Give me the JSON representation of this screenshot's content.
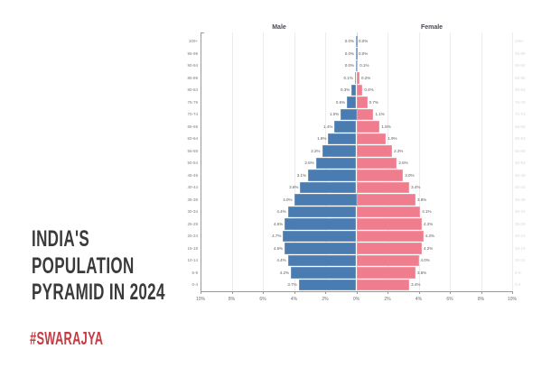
{
  "branding": {
    "title_lines": [
      "INDIA'S",
      "POPULATION",
      "PYRAMID IN 2024"
    ],
    "title_color": "#3a3a3a",
    "hashtag": "#SWARAJYA",
    "hashtag_color": "#c43b44"
  },
  "chart_data": {
    "type": "bar",
    "subtype": "population-pyramid",
    "title": "India's population pyramid in 2024",
    "male_label": "Male",
    "female_label": "Female",
    "age_groups": [
      "100+",
      "95-99",
      "90-94",
      "85-89",
      "80-84",
      "75-79",
      "70-74",
      "65-69",
      "60-64",
      "55-59",
      "50-54",
      "45-49",
      "40-44",
      "35-39",
      "30-34",
      "25-29",
      "20-24",
      "15-19",
      "10-14",
      "5-9",
      "0-4"
    ],
    "series": [
      {
        "name": "Male",
        "side": "left",
        "values": [
          0.0,
          0.0,
          0.0,
          0.1,
          0.3,
          0.6,
          1.0,
          1.4,
          1.8,
          2.2,
          2.6,
          3.1,
          3.6,
          4.0,
          4.4,
          4.6,
          4.7,
          4.6,
          4.4,
          4.2,
          3.7
        ]
      },
      {
        "name": "Female",
        "side": "right",
        "values": [
          0.0,
          0.0,
          0.1,
          0.2,
          0.4,
          0.7,
          1.1,
          1.5,
          1.9,
          2.3,
          2.6,
          3.0,
          3.4,
          3.8,
          4.1,
          4.2,
          4.3,
          4.2,
          4.0,
          3.8,
          3.4
        ]
      }
    ],
    "value_suffix": "%",
    "x_tick_labels": [
      "10%",
      "8%",
      "6%",
      "4%",
      "2%",
      "0%",
      "2%",
      "4%",
      "6%",
      "8%",
      "10%"
    ],
    "xlim": [
      -10,
      10
    ],
    "grid": true,
    "colors": {
      "male": "#4a7cb2",
      "female": "#f07d8e"
    }
  }
}
